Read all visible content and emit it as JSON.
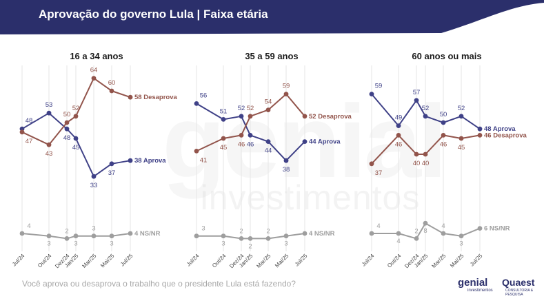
{
  "header": {
    "title": "Aprovação do governo Lula | Faixa etária"
  },
  "colors": {
    "banner": "#2b2f6b",
    "aprova": "#3f4187",
    "desaprova": "#92544b",
    "nsnr": "#9e9e9e",
    "gridline": "#e6e6e6"
  },
  "watermark": {
    "word": "genial",
    "sub": "investimentos"
  },
  "footer": {
    "question": "Você aprova ou desaprova o trabalho que o presidente Lula está fazendo?",
    "logo_genial": "genial",
    "logo_genial_sub": "investimentos",
    "logo_quaest": "Quaest",
    "logo_quaest_sub": "CONSULTORIA & PESQUISA"
  },
  "chart_data": [
    {
      "type": "line",
      "title": "16 a 34 anos",
      "categories": [
        "Jul/24",
        "Out/24",
        "Dez/24",
        "Jan/25",
        "Mar/25",
        "Mai/25",
        "Jul/25"
      ],
      "series": [
        {
          "name": "Aprova",
          "end_label": "38 Aprova",
          "values": [
            48,
            53,
            48,
            45,
            33,
            37,
            38
          ]
        },
        {
          "name": "Desaprova",
          "end_label": "58 Desaprova",
          "values": [
            47,
            43,
            50,
            52,
            64,
            60,
            58
          ]
        },
        {
          "name": "NS/NR",
          "end_label": "4 NS/NR",
          "values": [
            4,
            3,
            2,
            3,
            3,
            3,
            4
          ]
        }
      ]
    },
    {
      "type": "line",
      "title": "35 a 59 anos",
      "categories": [
        "Jul/24",
        "Out/24",
        "Dez/24",
        "Jan/25",
        "Mar/25",
        "Mai/25",
        "Jul/25"
      ],
      "series": [
        {
          "name": "Aprova",
          "end_label": "44 Aprova",
          "values": [
            56,
            51,
            52,
            46,
            44,
            38,
            44
          ]
        },
        {
          "name": "Desaprova",
          "end_label": "52 Desaprova",
          "values": [
            41,
            45,
            46,
            52,
            54,
            59,
            52
          ]
        },
        {
          "name": "NS/NR",
          "end_label": "4 NS/NR",
          "values": [
            3,
            3,
            2,
            2,
            2,
            3,
            4
          ]
        }
      ]
    },
    {
      "type": "line",
      "title": "60 anos ou mais",
      "categories": [
        "Jul/24",
        "Out/24",
        "Dez/24",
        "Jan/25",
        "Mar/25",
        "Mai/25",
        "Jul/25"
      ],
      "series": [
        {
          "name": "Aprova",
          "end_label": "48 Aprova",
          "values": [
            59,
            49,
            57,
            52,
            50,
            52,
            48
          ]
        },
        {
          "name": "Desaprova",
          "end_label": "46 Desaprova",
          "values": [
            37,
            46,
            40,
            40,
            46,
            45,
            46
          ]
        },
        {
          "name": "NS/NR",
          "end_label": "6 NS/NR",
          "values": [
            4,
            4,
            2,
            8,
            4,
            3,
            6
          ]
        }
      ]
    }
  ]
}
